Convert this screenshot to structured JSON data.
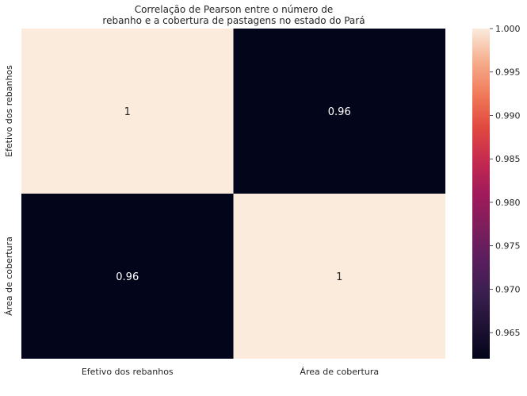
{
  "chart_data": {
    "type": "heatmap",
    "title_lines": [
      "Correlação de Pearson entre o número de",
      "rebanho e a cobertura de pastagens no estado do Pará"
    ],
    "x_categories": [
      "Efetivo dos rebanhos",
      "Área de cobertura"
    ],
    "y_categories": [
      "Efetivo dos rebanhos",
      "Área de cobertura"
    ],
    "matrix": [
      [
        1,
        0.96
      ],
      [
        0.96,
        1
      ]
    ],
    "annotations": [
      [
        "1",
        "0.96"
      ],
      [
        "0.96",
        "1"
      ]
    ],
    "colorbar": {
      "min": 0.962,
      "max": 1.0,
      "ticks": [
        "0.965",
        "0.970",
        "0.975",
        "0.980",
        "0.985",
        "0.990",
        "0.995",
        "1.000"
      ],
      "colormap": "rocket",
      "low_color": "#03051a",
      "high_color": "#faebdd"
    },
    "grid": false,
    "legend": "colorbar-right"
  }
}
